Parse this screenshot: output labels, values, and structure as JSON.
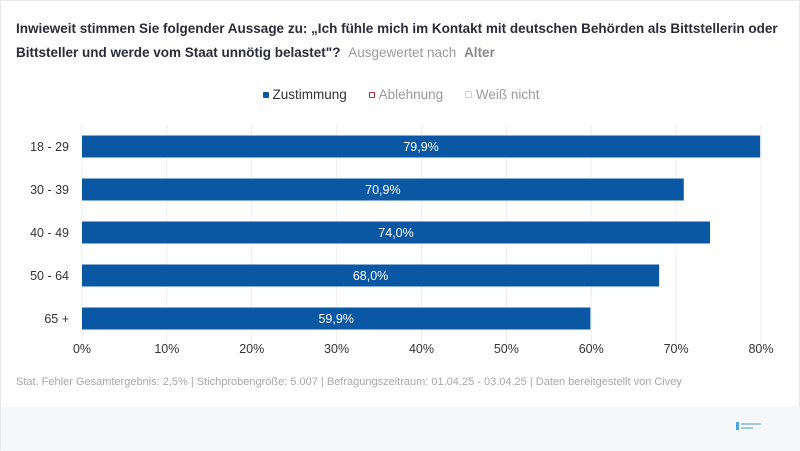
{
  "title": {
    "question": "Inwieweit stimmen Sie folgender Aussage zu: „Ich fühle mich im Kontakt mit deutschen Behörden als Bittstellerin oder Bittsteller und werde vom Staat unnötig belastet\"?",
    "evaluated_by": "Ausgewertet nach",
    "group": "Alter"
  },
  "legend": [
    {
      "label": "Zustimmung",
      "color": "#0a58a3",
      "filled": true
    },
    {
      "label": "Ablehnung",
      "color": "#c0262d",
      "filled": false
    },
    {
      "label": "Weiß nicht",
      "color": "#c8d8d0",
      "filled": false
    }
  ],
  "chart_data": {
    "type": "bar",
    "orientation": "horizontal",
    "categories": [
      "18 - 29",
      "30 - 39",
      "40 - 49",
      "50 - 64",
      "65 +"
    ],
    "series": [
      {
        "name": "Zustimmung",
        "color": "#0a58a3",
        "values": [
          79.9,
          70.9,
          74.0,
          68.0,
          59.9
        ],
        "labels": [
          "79,9%",
          "70,9%",
          "74,0%",
          "68,0%",
          "59,9%"
        ]
      }
    ],
    "xlim": [
      0,
      80
    ],
    "xticks": [
      0,
      10,
      20,
      30,
      40,
      50,
      60,
      70,
      80
    ],
    "xtick_labels": [
      "0%",
      "10%",
      "20%",
      "30%",
      "40%",
      "50%",
      "60%",
      "70%",
      "80%"
    ],
    "grid": true,
    "legend_position": "top-center"
  },
  "footer": "Stat. Fehler Gesamtergebnis: 2,5% | Stichprobengröße: 5.007 | Befragungszeitraum: 01.04.25 - 03.04.25 | Daten bereitgestellt von Civey"
}
